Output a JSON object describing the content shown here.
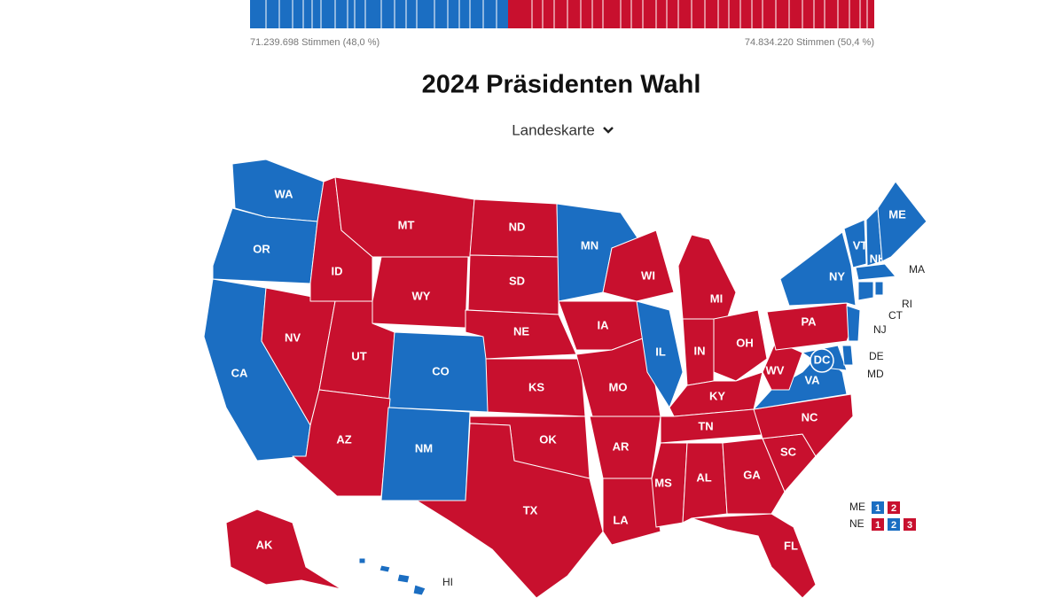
{
  "votes": {
    "left": "71.239.698 Stimmen (48,0 %)",
    "right": "74.834.220 Stimmen (50,4 %)"
  },
  "title": "2024 Präsidenten Wahl",
  "view_selector": "Landeskarte",
  "states": [
    {
      "label": "WA",
      "color": "#1b6ec2"
    },
    {
      "label": "OR",
      "color": "#1b6ec2"
    },
    {
      "label": "CA",
      "color": "#1b6ec2"
    },
    {
      "label": "NV",
      "color": "#c8102e"
    },
    {
      "label": "ID",
      "color": "#c8102e"
    },
    {
      "label": "MT",
      "color": "#c8102e"
    },
    {
      "label": "WY",
      "color": "#c8102e"
    },
    {
      "label": "UT",
      "color": "#c8102e"
    },
    {
      "label": "CO",
      "color": "#1b6ec2"
    },
    {
      "label": "AZ",
      "color": "#c8102e"
    },
    {
      "label": "NM",
      "color": "#1b6ec2"
    },
    {
      "label": "ND",
      "color": "#c8102e"
    },
    {
      "label": "SD",
      "color": "#c8102e"
    },
    {
      "label": "NE",
      "color": "#c8102e"
    },
    {
      "label": "KS",
      "color": "#c8102e"
    },
    {
      "label": "OK",
      "color": "#c8102e"
    },
    {
      "label": "TX",
      "color": "#c8102e"
    },
    {
      "label": "MN",
      "color": "#1b6ec2"
    },
    {
      "label": "IA",
      "color": "#c8102e"
    },
    {
      "label": "MO",
      "color": "#c8102e"
    },
    {
      "label": "AR",
      "color": "#c8102e"
    },
    {
      "label": "LA",
      "color": "#c8102e"
    },
    {
      "label": "WI",
      "color": "#c8102e"
    },
    {
      "label": "IL",
      "color": "#1b6ec2"
    },
    {
      "label": "MI",
      "color": "#c8102e"
    },
    {
      "label": "IN",
      "color": "#c8102e"
    },
    {
      "label": "OH",
      "color": "#c8102e"
    },
    {
      "label": "KY",
      "color": "#c8102e"
    },
    {
      "label": "TN",
      "color": "#c8102e"
    },
    {
      "label": "MS",
      "color": "#c8102e"
    },
    {
      "label": "AL",
      "color": "#c8102e"
    },
    {
      "label": "GA",
      "color": "#c8102e"
    },
    {
      "label": "FL",
      "color": "#c8102e"
    },
    {
      "label": "SC",
      "color": "#c8102e"
    },
    {
      "label": "NC",
      "color": "#c8102e"
    },
    {
      "label": "VA",
      "color": "#1b6ec2"
    },
    {
      "label": "WV",
      "color": "#c8102e"
    },
    {
      "label": "PA",
      "color": "#c8102e"
    },
    {
      "label": "NY",
      "color": "#1b6ec2"
    },
    {
      "label": "MD",
      "color": "#1b6ec2"
    },
    {
      "label": "DE",
      "color": "#1b6ec2"
    },
    {
      "label": "NJ",
      "color": "#1b6ec2"
    },
    {
      "label": "VT",
      "color": "#1b6ec2"
    },
    {
      "label": "NH",
      "color": "#1b6ec2"
    },
    {
      "label": "ME",
      "color": "#1b6ec2"
    },
    {
      "label": "MA",
      "color": "#1b6ec2"
    },
    {
      "label": "CT",
      "color": "#1b6ec2"
    },
    {
      "label": "RI",
      "color": "#1b6ec2"
    },
    {
      "label": "DC",
      "color": "#1b6ec2"
    },
    {
      "label": "AK",
      "color": "#c8102e"
    },
    {
      "label": "HI",
      "color": "#1b6ec2"
    }
  ],
  "split_votes": [
    {
      "state": "ME",
      "districts": [
        {
          "label": "1",
          "color": "#1b6ec2"
        },
        {
          "label": "2",
          "color": "#c8102e"
        }
      ]
    },
    {
      "state": "NE",
      "districts": [
        {
          "label": "1",
          "color": "#c8102e"
        },
        {
          "label": "2",
          "color": "#1b6ec2"
        },
        {
          "label": "3",
          "color": "#c8102e"
        }
      ]
    }
  ]
}
